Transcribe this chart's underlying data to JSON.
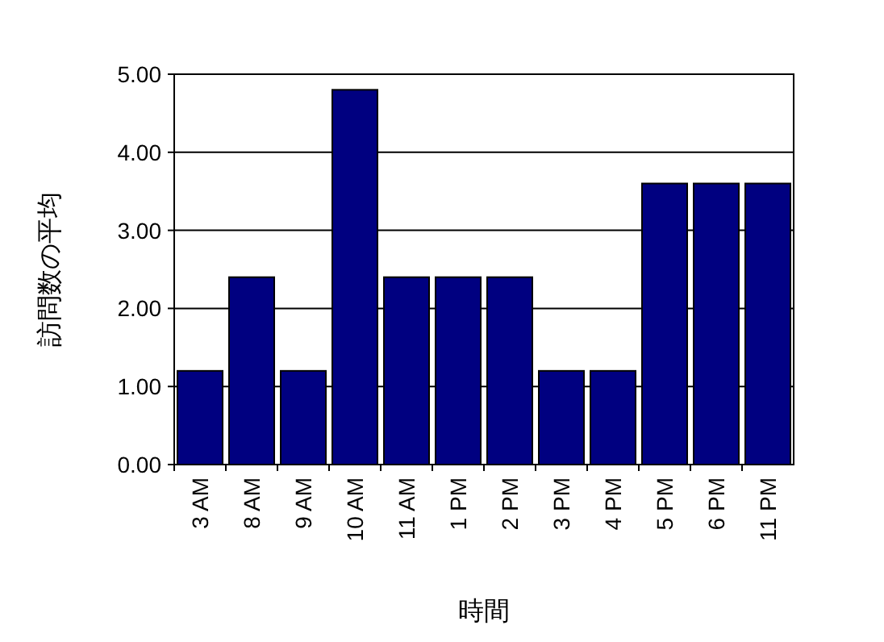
{
  "chart_data": {
    "type": "bar",
    "xlabel": "時間",
    "ylabel": "訪問数の平均",
    "categories": [
      "3 AM",
      "8 AM",
      "9 AM",
      "10 AM",
      "11 AM",
      "1 PM",
      "2 PM",
      "3 PM",
      "4 PM",
      "5 PM",
      "6 PM",
      "11 PM"
    ],
    "values": [
      1.2,
      2.4,
      1.2,
      4.8,
      2.4,
      2.4,
      2.4,
      1.2,
      1.2,
      3.6,
      3.6,
      3.6
    ],
    "color": "#000080",
    "ylim": [
      0,
      5
    ],
    "yticks": [
      {
        "value": 0,
        "label": "0.00"
      },
      {
        "value": 1,
        "label": "1.00"
      },
      {
        "value": 2,
        "label": "2.00"
      },
      {
        "value": 3,
        "label": "3.00"
      },
      {
        "value": 4,
        "label": "4.00"
      },
      {
        "value": 5,
        "label": "5.00"
      }
    ],
    "grid": "y"
  }
}
